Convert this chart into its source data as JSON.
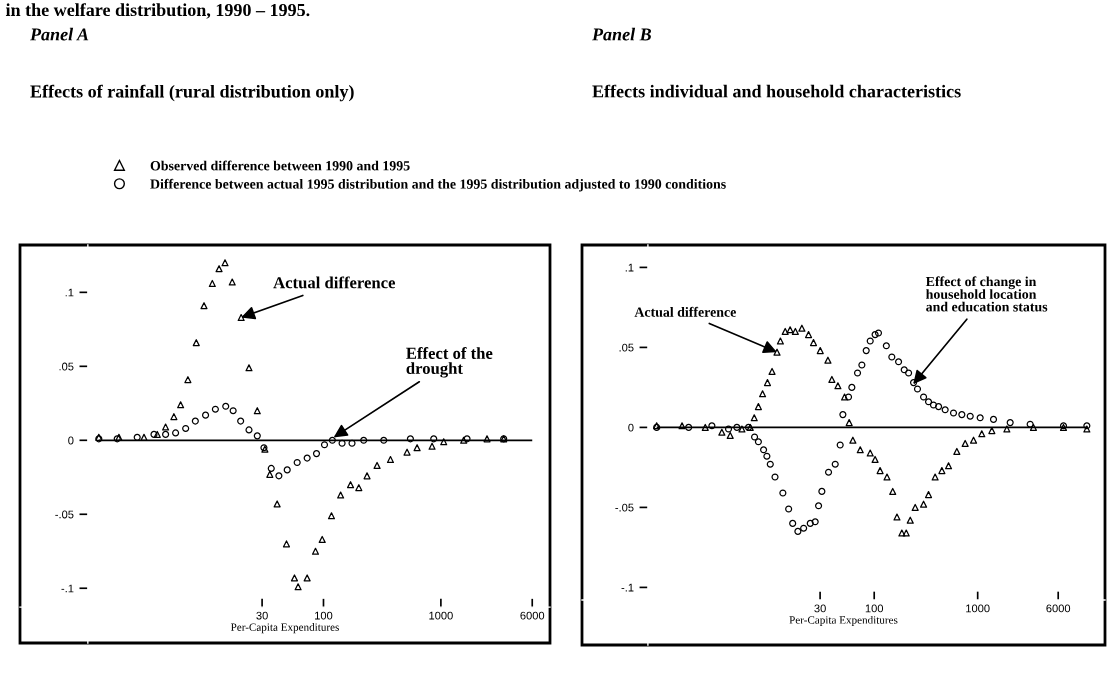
{
  "chart_data": [
    {
      "type": "scatter",
      "title": "Panel A",
      "subtitle": "Effects of rainfall (rural distribution only)",
      "xlabel": "Per-Capita Expenditures",
      "log": "x",
      "legend": "top",
      "xlim": [
        0.26,
        8500
      ],
      "ylim": [
        -0.137,
        0.132
      ],
      "xticks": [
        30,
        100,
        1000,
        6000
      ],
      "yticks": [
        {
          "value": 0.1,
          "label": ".1"
        },
        {
          "value": 0.05,
          "label": ".05"
        },
        0,
        {
          "value": -0.05,
          "label": "-.05"
        },
        {
          "value": -0.1,
          "label": "-.1"
        }
      ],
      "ref_lines": [
        {
          "axis": "y",
          "value": 0,
          "color": "#000000"
        }
      ],
      "annotations": [
        "in the welfare distribution, 1990 – 1995.",
        {
          "text": "Actual difference",
          "x": 19.9,
          "y": 0.083
        },
        {
          "text": "Effect of the\ndrought",
          "x": 122,
          "y": 0.002
        }
      ],
      "series": [
        {
          "name": "Observed difference between 1990 and 1995",
          "color": "#000000",
          "marker": "triangle",
          "x": [
            1.22,
            1.81,
            2.96,
            3.84,
            4.52,
            5.32,
            6.07,
            7.0,
            8.25,
            9.6,
            11.3,
            12.9,
            14.5,
            16.7,
            19.9,
            23.2,
            27.3,
            31.7,
            34.9,
            40.3,
            48.4,
            56.6,
            60.8,
            72.6,
            85.5,
            97.5,
            117,
            140,
            170,
            200,
            235,
            286,
            372,
            515,
            627,
            841,
            1057,
            1563,
            2472,
            3428
          ],
          "values": [
            0.002,
            0.002,
            0.002,
            0.004,
            0.009,
            0.016,
            0.024,
            0.041,
            0.066,
            0.091,
            0.106,
            0.116,
            0.12,
            0.107,
            0.083,
            0.049,
            0.02,
            -0.006,
            -0.023,
            -0.043,
            -0.07,
            -0.093,
            -0.099,
            -0.093,
            -0.075,
            -0.067,
            -0.051,
            -0.037,
            -0.03,
            -0.032,
            -0.024,
            -0.017,
            -0.013,
            -0.008,
            -0.005,
            -0.004,
            -0.001,
            0,
            0.001,
            0.001
          ]
        },
        {
          "name": "Difference between actual 1995 distribution and the 1995 distribution adjusted to 1990 conditions",
          "color": "#000000",
          "marker": "circle",
          "x": [
            1.22,
            1.75,
            2.59,
            3.6,
            4.52,
            5.5,
            6.7,
            8.1,
            9.9,
            12.0,
            14.7,
            17.0,
            19.7,
            23.2,
            27.3,
            31.1,
            35.9,
            41.7,
            49.1,
            59.7,
            72.6,
            87.2,
            102,
            119,
            144,
            175,
            220,
            326,
            550,
            869,
            1670,
            3428
          ],
          "values": [
            0.001,
            0.001,
            0.002,
            0.004,
            0.004,
            0.005,
            0.008,
            0.013,
            0.017,
            0.021,
            0.023,
            0.02,
            0.013,
            0.007,
            0.003,
            -0.005,
            -0.019,
            -0.024,
            -0.02,
            -0.015,
            -0.012,
            -0.009,
            -0.003,
            0,
            -0.002,
            -0.002,
            0,
            0,
            0.001,
            0.001,
            0.001,
            0.001
          ]
        }
      ]
    },
    {
      "type": "scatter",
      "title": "Panel B",
      "subtitle": "Effects individual and household characteristics",
      "xlabel": "Per-Capita Expenditures",
      "log": "x",
      "xlim": [
        0.15,
        17000
      ],
      "ylim": [
        -0.136,
        0.114
      ],
      "xticks": [
        30,
        100,
        1000,
        6000
      ],
      "yticks": [
        {
          "value": 0.1,
          "label": ".1"
        },
        {
          "value": 0.05,
          "label": ".05"
        },
        0,
        {
          "value": -0.05,
          "label": "-.05"
        },
        {
          "value": -0.1,
          "label": "-.1"
        }
      ],
      "ref_lines": [
        {
          "axis": "y",
          "value": 0,
          "color": "#000000"
        }
      ],
      "annotations": [
        {
          "text": "Actual difference",
          "x": 11.5,
          "y": 0.047
        },
        {
          "text": "Effect of change in\nhousehold location\nand education status",
          "x": 238,
          "y": 0.027
        }
      ],
      "series": [
        {
          "name": "Observed difference between 1990 and 1995",
          "color": "#000000",
          "marker": "triangle",
          "x": [
            0.79,
            1.39,
            2.33,
            3.37,
            4.06,
            5.27,
            6.34,
            6.93,
            7.6,
            8.34,
            9.3,
            10.3,
            11.5,
            12.4,
            13.8,
            15.4,
            17.3,
            20.0,
            23.2,
            25.9,
            30.1,
            35.7,
            39.0,
            44.6,
            51.7,
            57.3,
            62.2,
            73.3,
            91.5,
            102,
            114,
            133,
            151,
            166,
            185,
            204,
            223,
            249,
            300,
            335,
            388,
            451,
            523,
            629,
            757,
            912,
            1096,
            1371,
            1914,
            3459,
            6750,
            11350
          ],
          "values": [
            0.001,
            0.001,
            0,
            -0.003,
            -0.005,
            -0.001,
            0,
            0.006,
            0.013,
            0.021,
            0.028,
            0.035,
            0.047,
            0.054,
            0.06,
            0.061,
            0.06,
            0.062,
            0.058,
            0.053,
            0.048,
            0.042,
            0.03,
            0.026,
            0.019,
            0.003,
            -0.008,
            -0.014,
            -0.016,
            -0.02,
            -0.027,
            -0.031,
            -0.04,
            -0.056,
            -0.066,
            -0.066,
            -0.058,
            -0.05,
            -0.048,
            -0.042,
            -0.031,
            -0.027,
            -0.024,
            -0.015,
            -0.01,
            -0.008,
            -0.004,
            -0.002,
            -0.001,
            0,
            0,
            -0.001
          ]
        },
        {
          "name": "Difference between actual 1995 distribution and the 1995 distribution adjusted to 1990 conditions",
          "color": "#000000",
          "marker": "circle",
          "x": [
            0.79,
            1.61,
            2.7,
            3.91,
            4.71,
            6.1,
            6.98,
            7.6,
            8.53,
            9.18,
            9.9,
            11.0,
            13.1,
            14.9,
            16.3,
            18.3,
            20.8,
            24.1,
            26.9,
            29.0,
            31.2,
            36.2,
            42.0,
            46.9,
            49.8,
            56.5,
            60.8,
            69.0,
            76.0,
            83.7,
            91.5,
            102,
            110,
            131,
            148,
            172,
            195,
            215,
            240,
            262,
            300,
            335,
            374,
            419,
            485,
            584,
            703,
            847,
            1057,
            1422,
            2061,
            3214,
            6750,
            11350
          ],
          "values": [
            0,
            0,
            0.001,
            -0.001,
            0,
            0,
            -0.006,
            -0.009,
            -0.014,
            -0.018,
            -0.023,
            -0.031,
            -0.041,
            -0.051,
            -0.06,
            -0.065,
            -0.063,
            -0.06,
            -0.059,
            -0.049,
            -0.04,
            -0.028,
            -0.023,
            -0.011,
            0.008,
            0.019,
            0.025,
            0.034,
            0.039,
            0.048,
            0.054,
            0.058,
            0.059,
            0.051,
            0.044,
            0.041,
            0.036,
            0.034,
            0.028,
            0.024,
            0.019,
            0.016,
            0.014,
            0.013,
            0.011,
            0.009,
            0.008,
            0.007,
            0.006,
            0.005,
            0.003,
            0.002,
            0.001,
            0.001
          ]
        }
      ]
    }
  ]
}
